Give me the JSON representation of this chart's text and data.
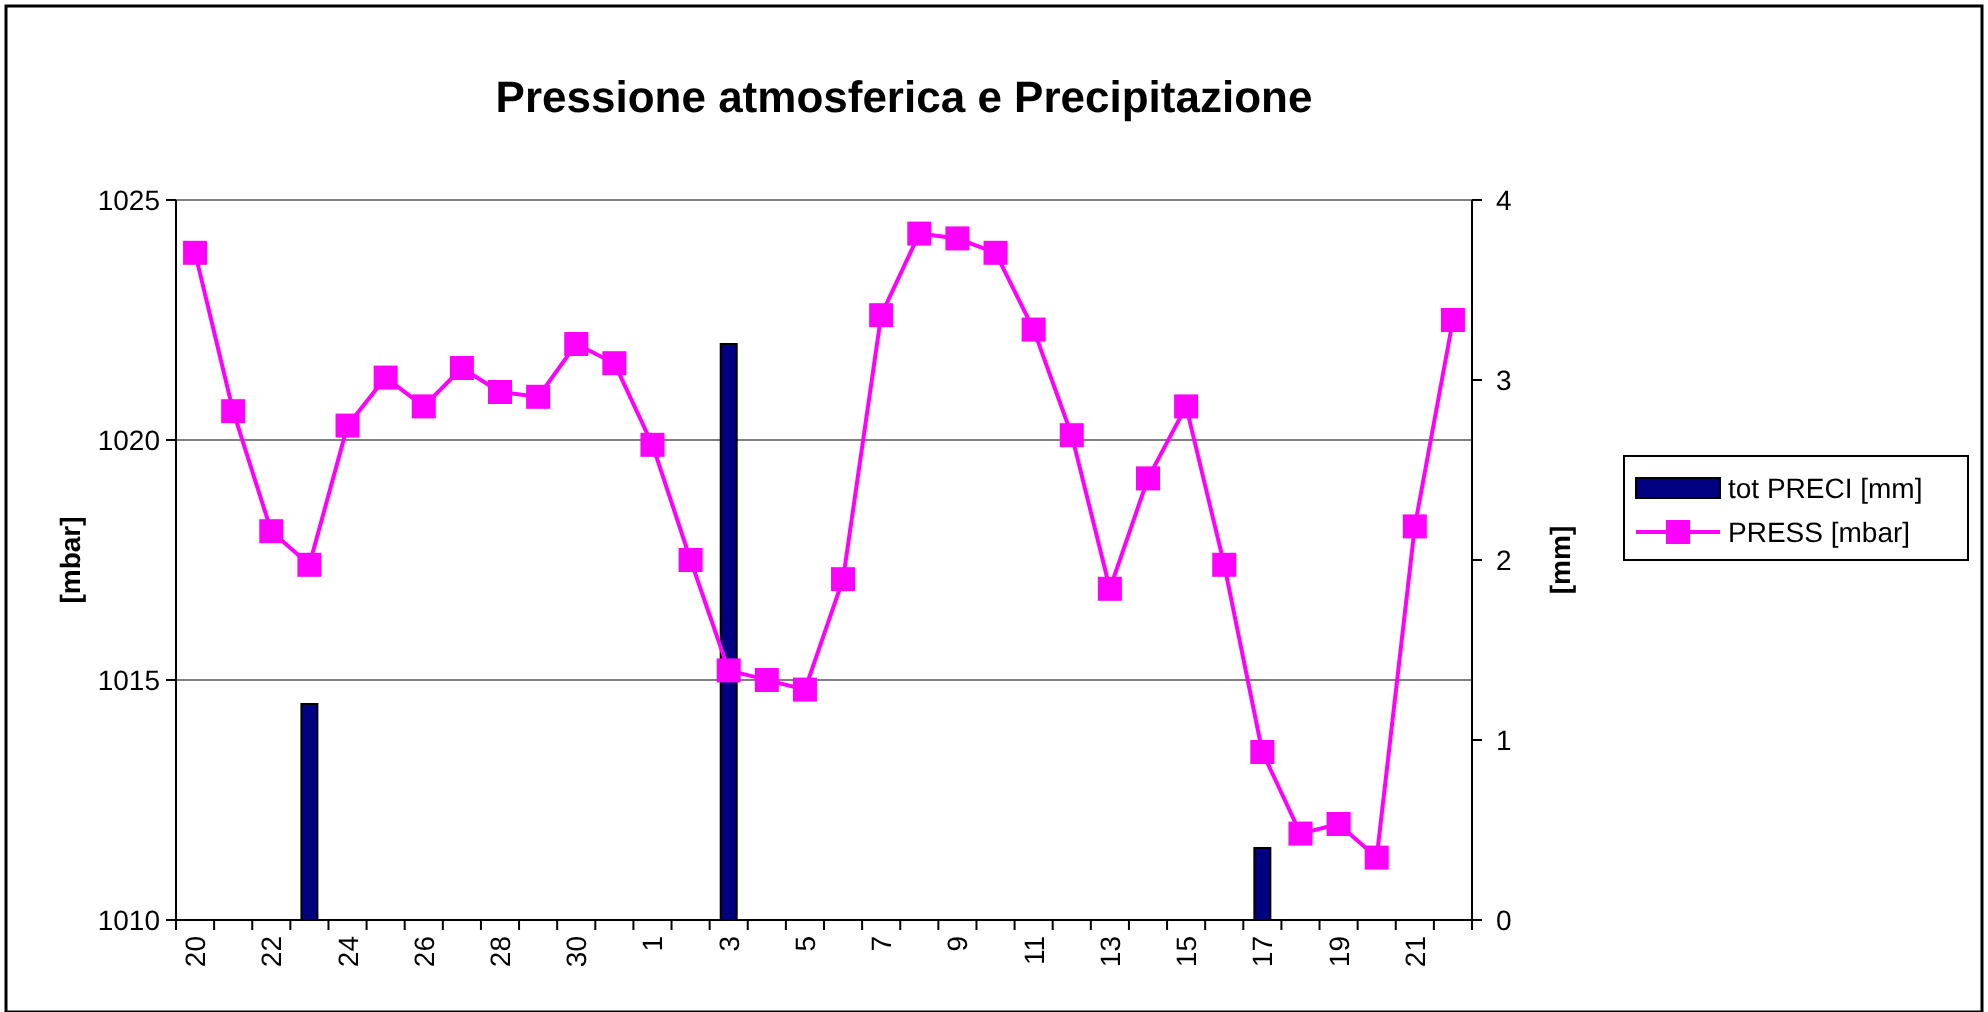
{
  "chart_data": {
    "type": "line",
    "title": "Pressione atmosferica e Precipitazione",
    "ylabel": "[mbar]",
    "y2label": "[mm]",
    "categories": [
      "20",
      null,
      "22",
      null,
      "24",
      null,
      "26",
      null,
      "28",
      null,
      "30",
      null,
      "1",
      null,
      "3",
      null,
      "5",
      null,
      "7",
      null,
      "9",
      null,
      "11",
      null,
      "13",
      null,
      "15",
      null,
      "17",
      null,
      "19",
      null,
      "21",
      null
    ],
    "series": [
      {
        "name": "tot PRECI [mm]",
        "type": "bar",
        "axis": "y2",
        "color": "#000080",
        "values": [
          0,
          0,
          0,
          1.2,
          0,
          0,
          0,
          0,
          0,
          0,
          0,
          0,
          0,
          0,
          3.2,
          0,
          0,
          0,
          0,
          0,
          0,
          0,
          0,
          0,
          0,
          0,
          0,
          0,
          0.4,
          0,
          0,
          0,
          0,
          0
        ]
      },
      {
        "name": "PRESS [mbar]",
        "color": "#ff00ff",
        "marker": "square",
        "values": [
          1023.9,
          1020.6,
          1018.1,
          1017.4,
          1020.3,
          1021.3,
          1020.7,
          1021.5,
          1021.0,
          1020.9,
          1022.0,
          1021.6,
          1019.9,
          1017.5,
          1015.2,
          1015.0,
          1014.8,
          1017.1,
          1022.6,
          1024.3,
          1024.2,
          1023.9,
          1022.3,
          1020.1,
          1016.9,
          1019.2,
          1020.7,
          1017.4,
          1013.5,
          1011.8,
          1012.0,
          1011.3,
          1018.2,
          1022.5
        ]
      }
    ],
    "ylim": [
      1010,
      1025
    ],
    "yticks": [
      1010,
      1015,
      1020,
      1025
    ],
    "y2lim": [
      0,
      4
    ],
    "y2ticks": [
      0,
      1,
      2,
      3,
      4
    ],
    "grid": "y",
    "legend": "right"
  }
}
